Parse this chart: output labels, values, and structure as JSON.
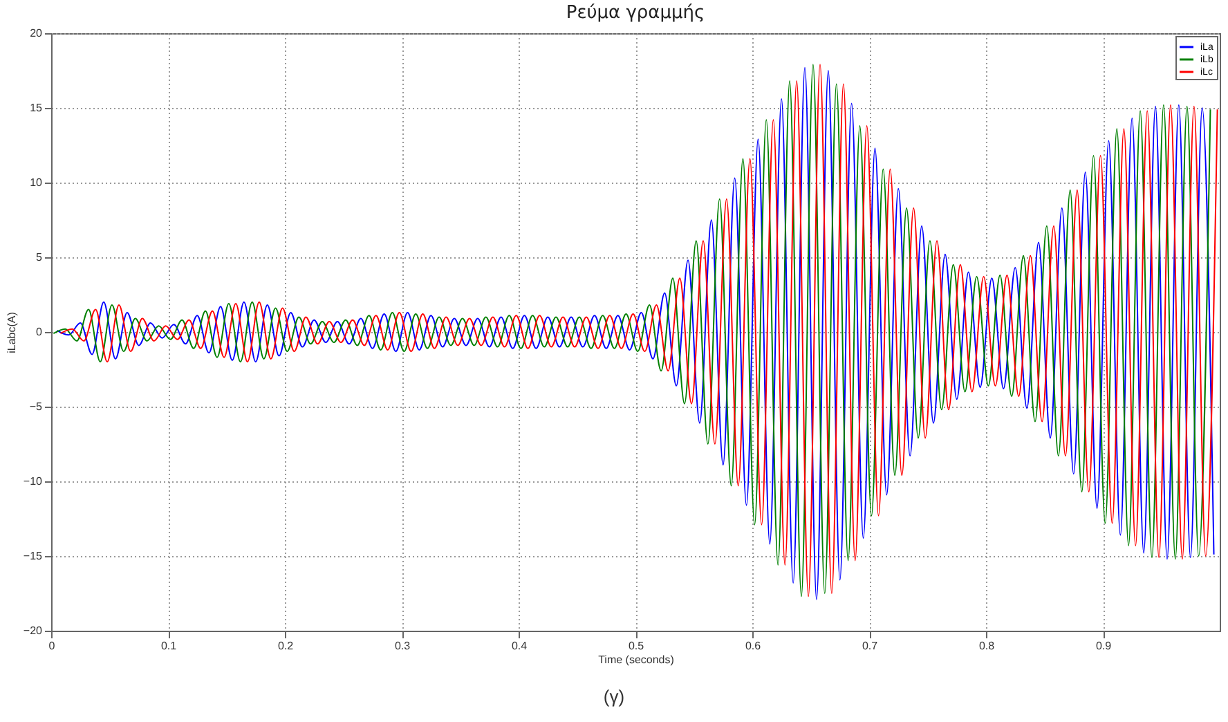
{
  "chart_data": {
    "type": "line",
    "title": "Ρεύμα γραμμής",
    "xlabel": "Time (seconds)",
    "ylabel": "iLabc(A)",
    "annotations": [
      "(γ)"
    ],
    "xlim": [
      0,
      1
    ],
    "xticks": [
      {
        "value": 0,
        "label": "0"
      },
      0.1,
      0.2,
      0.3,
      0.4,
      0.5,
      0.6,
      0.7,
      0.8,
      0.9
    ],
    "ylim": [
      -20,
      20
    ],
    "yticks": [
      -20,
      -15,
      -10,
      -5,
      0,
      5,
      10,
      15,
      20
    ],
    "grid": true,
    "legend": "top right",
    "series": [
      {
        "name": "iLa",
        "color": "#0000ff",
        "x": [
          0.005,
          0.015,
          0.025,
          0.035,
          0.045,
          0.055,
          0.065,
          0.075,
          0.085,
          0.095,
          0.105,
          0.115,
          0.125,
          0.135,
          0.145,
          0.155,
          0.165,
          0.175,
          0.185,
          0.195,
          0.205,
          0.215,
          0.225,
          0.235,
          0.245,
          0.255,
          0.265,
          0.275,
          0.285,
          0.295,
          0.305,
          0.315,
          0.325,
          0.335,
          0.345,
          0.355,
          0.365,
          0.375,
          0.385,
          0.395,
          0.405,
          0.415,
          0.425,
          0.435,
          0.445,
          0.455,
          0.465,
          0.475,
          0.485,
          0.495,
          0.505,
          0.515,
          0.525,
          0.535,
          0.545,
          0.555,
          0.565,
          0.575,
          0.585,
          0.595,
          0.605,
          0.615,
          0.625,
          0.635,
          0.645,
          0.655,
          0.665,
          0.675,
          0.685,
          0.695,
          0.705,
          0.715,
          0.725,
          0.735,
          0.745,
          0.755,
          0.765,
          0.775,
          0.785,
          0.795,
          0.805,
          0.815,
          0.825,
          0.835,
          0.845,
          0.855,
          0.865,
          0.875,
          0.885,
          0.895,
          0.905,
          0.915,
          0.925,
          0.935,
          0.945,
          0.955,
          0.965,
          0.975,
          0.985,
          0.995
        ],
        "values": [
          0.1,
          -0.2,
          0.6,
          -1.5,
          2.0,
          -1.8,
          1.3,
          -0.9,
          0.6,
          -0.4,
          0.5,
          -0.8,
          1.1,
          -1.4,
          1.7,
          -1.9,
          2.0,
          -2.0,
          1.8,
          -1.6,
          1.3,
          -1.0,
          0.8,
          -0.7,
          0.7,
          -0.8,
          0.9,
          -1.1,
          1.2,
          -1.3,
          1.3,
          -1.2,
          1.1,
          -1.0,
          0.9,
          -0.9,
          0.9,
          -1.0,
          1.0,
          -1.1,
          1.1,
          -1.1,
          1.0,
          -1.0,
          1.0,
          -1.0,
          1.1,
          -1.1,
          1.1,
          -1.2,
          1.3,
          -1.8,
          2.6,
          -3.6,
          4.8,
          -6.1,
          7.5,
          -8.9,
          10.3,
          -11.6,
          12.9,
          -14.2,
          15.6,
          -16.8,
          17.7,
          -17.9,
          17.5,
          -16.6,
          15.3,
          -13.8,
          12.3,
          -10.9,
          9.6,
          -8.3,
          7.1,
          -6.1,
          5.2,
          -4.5,
          4.0,
          -3.7,
          3.6,
          -3.8,
          4.3,
          -5.1,
          6.0,
          -7.1,
          8.3,
          -9.5,
          10.7,
          -11.8,
          12.8,
          -13.6,
          14.3,
          -14.8,
          15.1,
          -15.2,
          15.2,
          -15.1,
          15.0,
          -14.9
        ]
      },
      {
        "name": "iLb",
        "color": "#008000",
        "x": [
          0.002,
          0.012,
          0.022,
          0.032,
          0.042,
          0.052,
          0.062,
          0.072,
          0.082,
          0.092,
          0.102,
          0.112,
          0.122,
          0.132,
          0.142,
          0.152,
          0.162,
          0.172,
          0.182,
          0.192,
          0.202,
          0.212,
          0.222,
          0.232,
          0.242,
          0.252,
          0.262,
          0.272,
          0.282,
          0.292,
          0.302,
          0.312,
          0.322,
          0.332,
          0.342,
          0.352,
          0.362,
          0.372,
          0.382,
          0.392,
          0.402,
          0.412,
          0.422,
          0.432,
          0.442,
          0.452,
          0.462,
          0.472,
          0.482,
          0.492,
          0.502,
          0.512,
          0.522,
          0.532,
          0.542,
          0.552,
          0.562,
          0.572,
          0.582,
          0.592,
          0.602,
          0.612,
          0.622,
          0.632,
          0.642,
          0.652,
          0.662,
          0.672,
          0.682,
          0.692,
          0.702,
          0.712,
          0.722,
          0.732,
          0.742,
          0.752,
          0.762,
          0.772,
          0.782,
          0.792,
          0.802,
          0.812,
          0.822,
          0.832,
          0.842,
          0.852,
          0.862,
          0.872,
          0.882,
          0.892,
          0.902,
          0.912,
          0.922,
          0.932,
          0.942,
          0.952,
          0.962,
          0.972,
          0.982,
          0.992
        ],
        "values": [
          -0.1,
          0.2,
          -0.6,
          1.5,
          -2.0,
          1.8,
          -1.3,
          0.9,
          -0.6,
          0.4,
          -0.5,
          0.8,
          -1.1,
          1.4,
          -1.7,
          1.9,
          -2.0,
          2.0,
          -1.8,
          1.6,
          -1.3,
          1.0,
          -0.8,
          0.7,
          -0.7,
          0.8,
          -0.9,
          1.1,
          -1.2,
          1.3,
          -1.3,
          1.2,
          -1.1,
          1.0,
          -0.9,
          0.9,
          -0.9,
          1.0,
          -1.0,
          1.1,
          -1.1,
          1.1,
          -1.0,
          1.0,
          -1.0,
          1.0,
          -1.1,
          1.1,
          -1.1,
          1.2,
          -1.3,
          1.8,
          -2.6,
          3.6,
          -4.8,
          6.1,
          -7.5,
          8.9,
          -10.3,
          11.6,
          -12.9,
          14.2,
          -15.6,
          16.8,
          -17.7,
          17.9,
          -17.5,
          16.6,
          -15.3,
          13.8,
          -12.3,
          10.9,
          -9.6,
          8.3,
          -7.1,
          6.1,
          -5.2,
          4.5,
          -4.0,
          3.7,
          -3.6,
          3.8,
          -4.3,
          5.1,
          -6.0,
          7.1,
          -8.3,
          9.5,
          -10.7,
          11.8,
          -12.8,
          13.6,
          -14.3,
          14.8,
          -15.1,
          15.2,
          -15.2,
          15.1,
          -15.0,
          14.9
        ]
      },
      {
        "name": "iLc",
        "color": "#ff0000",
        "x": [
          0.008,
          0.018,
          0.028,
          0.038,
          0.048,
          0.058,
          0.068,
          0.078,
          0.088,
          0.098,
          0.108,
          0.118,
          0.128,
          0.138,
          0.148,
          0.158,
          0.168,
          0.178,
          0.188,
          0.198,
          0.208,
          0.218,
          0.228,
          0.238,
          0.248,
          0.258,
          0.268,
          0.278,
          0.288,
          0.298,
          0.308,
          0.318,
          0.328,
          0.338,
          0.348,
          0.358,
          0.368,
          0.378,
          0.388,
          0.398,
          0.408,
          0.418,
          0.428,
          0.438,
          0.448,
          0.458,
          0.468,
          0.478,
          0.488,
          0.498,
          0.508,
          0.518,
          0.528,
          0.538,
          0.548,
          0.558,
          0.568,
          0.578,
          0.588,
          0.598,
          0.608,
          0.618,
          0.628,
          0.638,
          0.648,
          0.658,
          0.668,
          0.678,
          0.688,
          0.698,
          0.708,
          0.718,
          0.728,
          0.738,
          0.748,
          0.758,
          0.768,
          0.778,
          0.788,
          0.798,
          0.808,
          0.818,
          0.828,
          0.838,
          0.848,
          0.858,
          0.868,
          0.878,
          0.888,
          0.898,
          0.908,
          0.918,
          0.928,
          0.938,
          0.948,
          0.958,
          0.968,
          0.978,
          0.988,
          0.998
        ],
        "values": [
          -0.1,
          0.2,
          -0.6,
          1.5,
          -2.0,
          1.8,
          -1.3,
          0.9,
          -0.6,
          0.4,
          -0.5,
          0.8,
          -1.1,
          1.4,
          -1.7,
          1.9,
          -2.0,
          2.0,
          -1.8,
          1.6,
          -1.3,
          1.0,
          -0.8,
          0.7,
          -0.7,
          0.8,
          -0.9,
          1.1,
          -1.2,
          1.3,
          -1.3,
          1.2,
          -1.1,
          1.0,
          -0.9,
          0.9,
          -0.9,
          1.0,
          -1.0,
          1.1,
          -1.1,
          1.1,
          -1.0,
          1.0,
          -1.0,
          1.0,
          -1.1,
          1.1,
          -1.1,
          1.2,
          -1.3,
          1.8,
          -2.6,
          3.6,
          -4.8,
          6.1,
          -7.5,
          8.9,
          -10.3,
          11.6,
          -12.9,
          14.2,
          -15.6,
          16.8,
          -17.7,
          17.9,
          -17.5,
          16.6,
          -15.3,
          13.8,
          -12.3,
          10.9,
          -9.6,
          8.3,
          -7.1,
          6.1,
          -5.2,
          4.5,
          -4.0,
          3.7,
          -3.6,
          3.8,
          -4.3,
          5.1,
          -6.0,
          7.1,
          -8.3,
          9.5,
          -10.7,
          11.8,
          -12.8,
          13.6,
          -14.3,
          14.8,
          -15.1,
          15.2,
          -15.2,
          15.1,
          -15.0,
          14.9
        ]
      }
    ]
  }
}
